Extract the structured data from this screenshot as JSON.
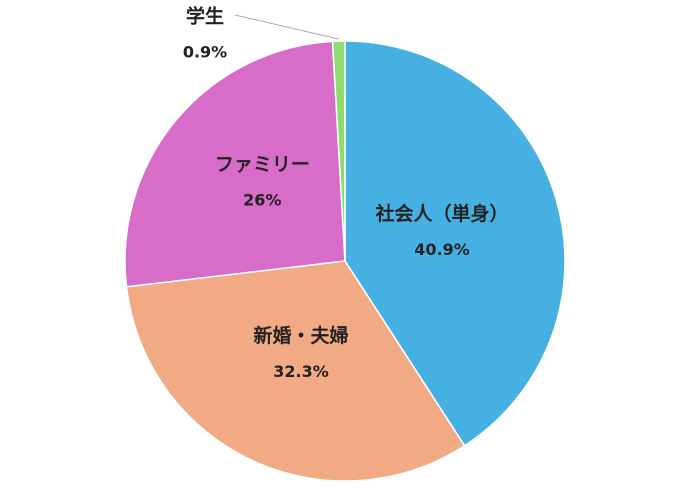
{
  "chart_data": {
    "type": "pie",
    "categories": [
      "社会人（単身）",
      "新婚・夫婦",
      "ファミリー",
      "学生"
    ],
    "values": [
      40.9,
      32.3,
      26,
      0.9
    ],
    "value_labels": [
      "40.9%",
      "32.3%",
      "26%",
      "0.9%"
    ],
    "colors": [
      "#45b0e1",
      "#f1aa84",
      "#d76cc9",
      "#8fdc6e"
    ]
  }
}
